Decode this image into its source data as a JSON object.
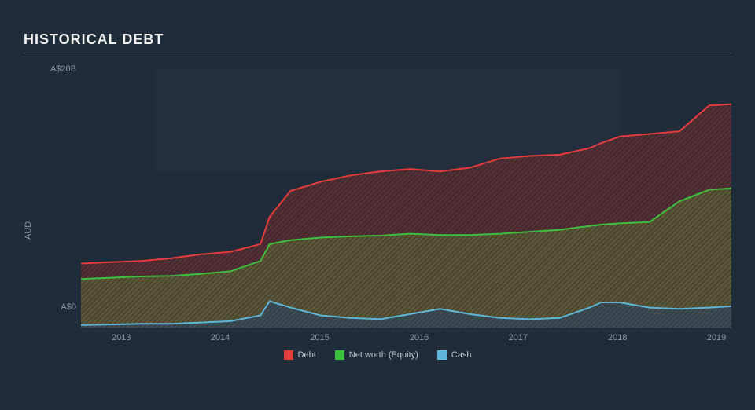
{
  "chart": {
    "type": "stacked-area",
    "title": "HISTORICAL DEBT",
    "background_color": "#212c3a",
    "title_color": "#f2f2f2",
    "title_fontsize": 18,
    "axis_label_color": "#8a96a3",
    "axis_fontsize": 11,
    "underline_color": "#4a5562",
    "y_label": "AUD",
    "y_ticks": [
      {
        "value": 0,
        "label": "A$0"
      },
      {
        "value": 20,
        "label": "A$20B"
      }
    ],
    "ylim": [
      0,
      20
    ],
    "x_ticks": [
      {
        "t": 0.062,
        "label": "2013"
      },
      {
        "t": 0.214,
        "label": "2014"
      },
      {
        "t": 0.367,
        "label": "2015"
      },
      {
        "t": 0.52,
        "label": "2016"
      },
      {
        "t": 0.672,
        "label": "2017"
      },
      {
        "t": 0.825,
        "label": "2018"
      },
      {
        "t": 0.977,
        "label": "2019"
      }
    ],
    "plot_inner_bg": "#263241",
    "plot_inner_bg_x": [
      0.115,
      0.83
    ],
    "plot_inner_bg_y": [
      0.6,
      1.0
    ],
    "series": [
      {
        "name": "Debt",
        "stroke": "#e63c3c",
        "fill": "#5a2f35",
        "fill_opacity": 0.85,
        "hatch": true,
        "hatch_color": "#3a232a",
        "line_width": 2
      },
      {
        "name": "Net worth (Equity)",
        "stroke": "#3fbf3f",
        "fill": "#5c5a35",
        "fill_opacity": 0.85,
        "hatch": true,
        "hatch_color": "#3c3d2b",
        "line_width": 2
      },
      {
        "name": "Cash",
        "stroke": "#5fb5d8",
        "fill": "#3a4a55",
        "fill_opacity": 0.85,
        "hatch": true,
        "hatch_color": "#2c3a45",
        "line_width": 2
      }
    ],
    "t_points": [
      0.0,
      0.046,
      0.092,
      0.138,
      0.184,
      0.23,
      0.276,
      0.29,
      0.322,
      0.368,
      0.414,
      0.46,
      0.506,
      0.552,
      0.598,
      0.644,
      0.69,
      0.736,
      0.782,
      0.8,
      0.828,
      0.874,
      0.92,
      0.966,
      1.0
    ],
    "values": {
      "Cash": [
        0.25,
        0.3,
        0.35,
        0.35,
        0.45,
        0.55,
        1.0,
        2.1,
        1.6,
        1.0,
        0.8,
        0.7,
        1.1,
        1.5,
        1.1,
        0.8,
        0.7,
        0.8,
        1.6,
        2.0,
        2.0,
        1.6,
        1.5,
        1.6,
        1.7
      ],
      "Equity": [
        3.8,
        3.9,
        4.0,
        4.05,
        4.2,
        4.4,
        5.2,
        6.5,
        6.8,
        7.0,
        7.1,
        7.15,
        7.3,
        7.2,
        7.2,
        7.3,
        7.45,
        7.6,
        7.9,
        8.0,
        8.1,
        8.2,
        9.8,
        10.7,
        10.8
      ],
      "Debt": [
        5.0,
        5.1,
        5.2,
        5.4,
        5.7,
        5.9,
        6.5,
        8.6,
        10.6,
        11.3,
        11.8,
        12.1,
        12.3,
        12.1,
        12.4,
        13.1,
        13.3,
        13.4,
        13.9,
        14.3,
        14.8,
        15.0,
        15.2,
        17.2,
        17.3
      ]
    },
    "legend": [
      {
        "label": "Debt",
        "color": "#e63c3c"
      },
      {
        "label": "Net worth (Equity)",
        "color": "#3fbf3f"
      },
      {
        "label": "Cash",
        "color": "#5fb5d8"
      }
    ]
  }
}
